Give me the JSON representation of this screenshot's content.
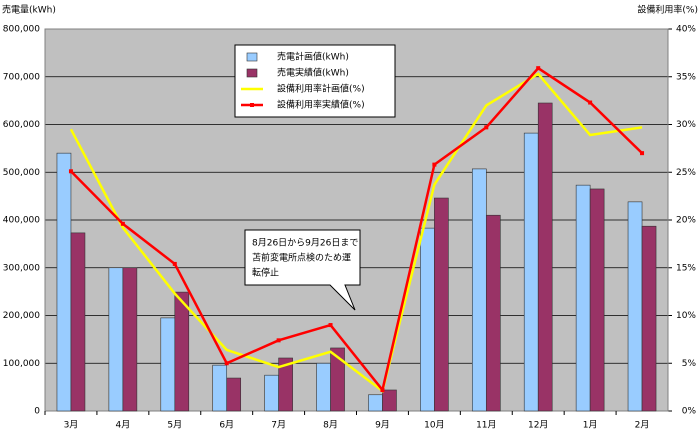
{
  "chart_data": {
    "type": "bar",
    "y_label": "売電量(kWh)",
    "y2_label": "設備利用率(%)",
    "categories": [
      "3月",
      "4月",
      "5月",
      "6月",
      "7月",
      "8月",
      "9月",
      "10月",
      "11月",
      "12月",
      "1月",
      "2月"
    ],
    "series": [
      {
        "name": "売電計画値(kWh)",
        "type": "bar",
        "color": "#99ccff",
        "values": [
          540000,
          300000,
          195000,
          96000,
          75000,
          100000,
          34000,
          383000,
          507000,
          582000,
          473000,
          438000
        ]
      },
      {
        "name": "売電実績値(kWh)",
        "type": "bar",
        "color": "#993366",
        "values": [
          373000,
          300000,
          249000,
          69000,
          111000,
          132000,
          44000,
          446000,
          410000,
          645000,
          465000,
          387000
        ]
      },
      {
        "name": "設備利用率計画値(%)",
        "type": "line",
        "axis": "y2",
        "color": "#ffff00",
        "values": [
          29.5,
          19.2,
          12.3,
          6.4,
          4.6,
          6.2,
          2.1,
          23.7,
          32.0,
          35.3,
          28.9,
          29.7
        ]
      },
      {
        "name": "設備利用率実績値(%)",
        "type": "line",
        "axis": "y2",
        "color": "#ff0000",
        "markers": true,
        "values": [
          25.1,
          19.6,
          15.4,
          5.0,
          7.4,
          9.0,
          2.2,
          25.8,
          29.7,
          35.9,
          32.3,
          27.0
        ]
      }
    ],
    "ylim": [
      0,
      800000
    ],
    "yticks": [
      0,
      {
        "value": 100000,
        "label": "100,000"
      },
      {
        "value": 200000,
        "label": "200,000"
      },
      {
        "value": 300000,
        "label": "300,000"
      },
      {
        "value": 400000,
        "label": "400,000"
      },
      {
        "value": 500000,
        "label": "500,000"
      },
      {
        "value": 600000,
        "label": "600,000"
      },
      {
        "value": 700000,
        "label": "700,000"
      },
      {
        "value": 800000,
        "label": "800,000"
      }
    ],
    "y2lim": [
      0,
      40
    ],
    "y2ticks": [
      {
        "value": 0,
        "label": "0%"
      },
      {
        "value": 5,
        "label": "5%"
      },
      {
        "value": 10,
        "label": "10%"
      },
      {
        "value": 15,
        "label": "15%"
      },
      {
        "value": 20,
        "label": "20%"
      },
      {
        "value": 25,
        "label": "25%"
      },
      {
        "value": 30,
        "label": "30%"
      },
      {
        "value": 35,
        "label": "35%"
      },
      {
        "value": 40,
        "label": "40%"
      }
    ],
    "grid": true,
    "legend": "top",
    "annotation": [
      "8月26日から9月26日まで",
      "苫前変電所点検のため運",
      "転停止"
    ]
  }
}
